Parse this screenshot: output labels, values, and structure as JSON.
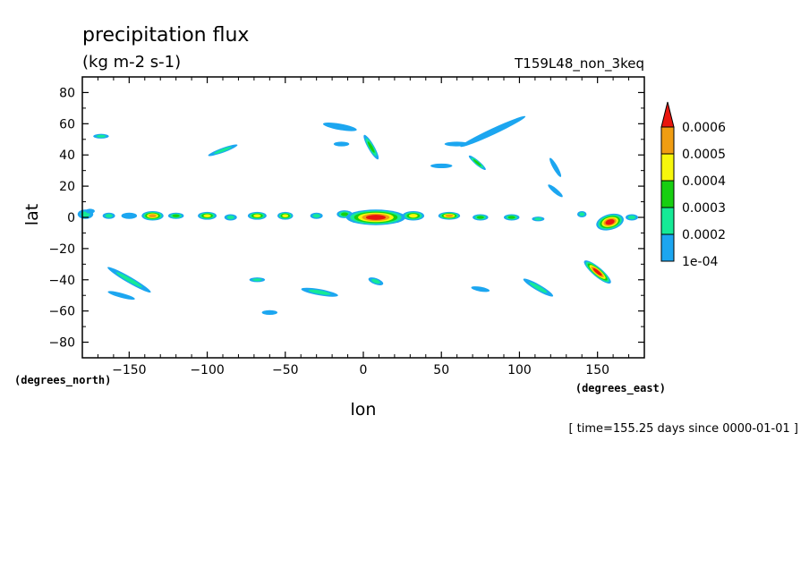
{
  "chart_data": {
    "type": "heatmap",
    "title": "precipitation flux",
    "units": "(kg m-2 s-1)",
    "run_label": "T159L48_non_3keq",
    "xlabel": "lon",
    "ylabel": "lat",
    "x_unit_label": "(degrees_east)",
    "y_unit_label": "(degrees_north)",
    "time_label": "[ time=155.25 days since 0000-01-01 ]",
    "xlim": [
      -180,
      180
    ],
    "ylim": [
      -90,
      90
    ],
    "x_ticks": [
      -150,
      -100,
      -50,
      0,
      50,
      100,
      150
    ],
    "y_ticks": [
      -80,
      -60,
      -40,
      -20,
      0,
      20,
      40,
      60,
      80
    ],
    "colorbar": {
      "levels": [
        0.0001,
        0.0002,
        0.0003,
        0.0004,
        0.0005,
        0.0006
      ],
      "labels": [
        "1e-04",
        "0.0002",
        "0.0003",
        "0.0004",
        "0.0005",
        "0.0006"
      ],
      "colors": [
        "#1ca6f0",
        "#15ea96",
        "#17cf11",
        "#f7f70c",
        "#f09d12",
        "#e9160e"
      ],
      "extend": "max"
    },
    "features": [
      {
        "lon": -178,
        "lat": 2,
        "w": 10,
        "h": 6,
        "rot": 0,
        "lev": 2
      },
      {
        "lon": -163,
        "lat": 1,
        "w": 8,
        "h": 4,
        "rot": 0,
        "lev": 2
      },
      {
        "lon": -150,
        "lat": 1,
        "w": 10,
        "h": 4,
        "rot": 0,
        "lev": 1
      },
      {
        "lon": -135,
        "lat": 1,
        "w": 14,
        "h": 6,
        "rot": 0,
        "lev": 5
      },
      {
        "lon": -120,
        "lat": 1,
        "w": 10,
        "h": 4,
        "rot": 0,
        "lev": 3
      },
      {
        "lon": -100,
        "lat": 1,
        "w": 12,
        "h": 5,
        "rot": 0,
        "lev": 4
      },
      {
        "lon": -85,
        "lat": 0,
        "w": 8,
        "h": 4,
        "rot": 0,
        "lev": 2
      },
      {
        "lon": -68,
        "lat": 1,
        "w": 12,
        "h": 5,
        "rot": 0,
        "lev": 4
      },
      {
        "lon": -50,
        "lat": 1,
        "w": 10,
        "h": 5,
        "rot": 0,
        "lev": 4
      },
      {
        "lon": -30,
        "lat": 1,
        "w": 8,
        "h": 4,
        "rot": 0,
        "lev": 2
      },
      {
        "lon": -12,
        "lat": 2,
        "w": 10,
        "h": 5,
        "rot": 0,
        "lev": 3
      },
      {
        "lon": 8,
        "lat": 0,
        "w": 38,
        "h": 10,
        "rot": 0,
        "lev": 6
      },
      {
        "lon": 32,
        "lat": 1,
        "w": 14,
        "h": 6,
        "rot": 0,
        "lev": 4
      },
      {
        "lon": 55,
        "lat": 1,
        "w": 14,
        "h": 5,
        "rot": 0,
        "lev": 5
      },
      {
        "lon": 75,
        "lat": 0,
        "w": 10,
        "h": 4,
        "rot": 0,
        "lev": 3
      },
      {
        "lon": 95,
        "lat": 0,
        "w": 10,
        "h": 4,
        "rot": 0,
        "lev": 3
      },
      {
        "lon": 112,
        "lat": -1,
        "w": 8,
        "h": 3,
        "rot": 0,
        "lev": 2
      },
      {
        "lon": 140,
        "lat": 2,
        "w": 6,
        "h": 4,
        "rot": 0,
        "lev": 2
      },
      {
        "lon": 158,
        "lat": -3,
        "w": 18,
        "h": 10,
        "rot": -15,
        "lev": 6
      },
      {
        "lon": 172,
        "lat": 0,
        "w": 8,
        "h": 4,
        "rot": 0,
        "lev": 2
      },
      {
        "lon": -168,
        "lat": 52,
        "w": 10,
        "h": 3,
        "rot": 0,
        "lev": 2
      },
      {
        "lon": -90,
        "lat": 43,
        "w": 20,
        "h": 3,
        "rot": -20,
        "lev": 2
      },
      {
        "lon": -15,
        "lat": 58,
        "w": 22,
        "h": 4,
        "rot": 10,
        "lev": 1
      },
      {
        "lon": 5,
        "lat": 45,
        "w": 18,
        "h": 4,
        "rot": 60,
        "lev": 3
      },
      {
        "lon": -14,
        "lat": 47,
        "w": 10,
        "h": 3,
        "rot": 0,
        "lev": 1
      },
      {
        "lon": 83,
        "lat": 55,
        "w": 46,
        "h": 4,
        "rot": -25,
        "lev": 1
      },
      {
        "lon": 60,
        "lat": 47,
        "w": 16,
        "h": 3,
        "rot": 0,
        "lev": 1
      },
      {
        "lon": 73,
        "lat": 35,
        "w": 14,
        "h": 3,
        "rot": 40,
        "lev": 3
      },
      {
        "lon": 50,
        "lat": 33,
        "w": 14,
        "h": 3,
        "rot": 0,
        "lev": 1
      },
      {
        "lon": 123,
        "lat": 32,
        "w": 14,
        "h": 3,
        "rot": 60,
        "lev": 1
      },
      {
        "lon": 123,
        "lat": 17,
        "w": 12,
        "h": 3,
        "rot": 40,
        "lev": 1
      },
      {
        "lon": -150,
        "lat": -40,
        "w": 32,
        "h": 4,
        "rot": 30,
        "lev": 2
      },
      {
        "lon": -155,
        "lat": -50,
        "w": 18,
        "h": 3,
        "rot": 15,
        "lev": 1
      },
      {
        "lon": -68,
        "lat": -40,
        "w": 10,
        "h": 3,
        "rot": 0,
        "lev": 2
      },
      {
        "lon": -28,
        "lat": -48,
        "w": 24,
        "h": 4,
        "rot": 10,
        "lev": 2
      },
      {
        "lon": 8,
        "lat": -41,
        "w": 10,
        "h": 4,
        "rot": 20,
        "lev": 2
      },
      {
        "lon": 75,
        "lat": -46,
        "w": 12,
        "h": 3,
        "rot": 10,
        "lev": 1
      },
      {
        "lon": 112,
        "lat": -45,
        "w": 22,
        "h": 4,
        "rot": 30,
        "lev": 2
      },
      {
        "lon": 150,
        "lat": -35,
        "w": 22,
        "h": 6,
        "rot": 40,
        "lev": 6
      },
      {
        "lon": -60,
        "lat": -61,
        "w": 10,
        "h": 3,
        "rot": 0,
        "lev": 1
      },
      {
        "lon": -175,
        "lat": 4,
        "w": 6,
        "h": 3,
        "rot": 0,
        "lev": 1
      }
    ]
  }
}
